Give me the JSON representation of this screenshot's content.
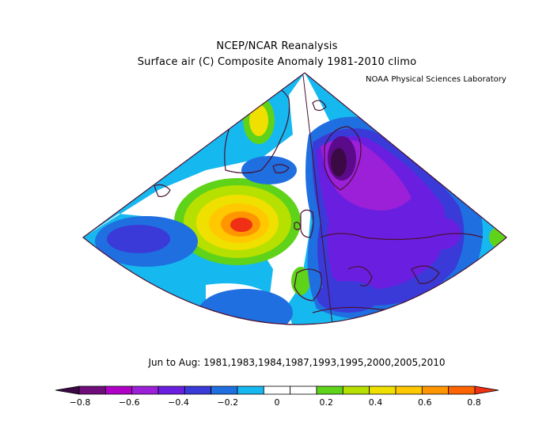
{
  "titles": {
    "line1": "NCEP/NCAR Reanalysis",
    "line2": "Surface air (C) Composite Anomaly 1981-2010 climo",
    "credit": "NOAA Physical Sciences Laboratory",
    "period": "Jun to Aug: 1981,1983,1984,1987,1993,1995,2000,2005,2010"
  },
  "colorbar": {
    "colors": [
      "#3b0a45",
      "#6f0d7a",
      "#b000c8",
      "#9b20d8",
      "#6a1fe0",
      "#3a3ad8",
      "#1f6fe0",
      "#16b8f0",
      "#ffffff",
      "#ffffff",
      "#5fd21a",
      "#b6e000",
      "#f0e000",
      "#ffc800",
      "#ff9600",
      "#ff6400",
      "#f03014"
    ],
    "ticks": [
      "-0.8",
      "-0.6",
      "-0.4",
      "-0.2",
      "0",
      "0.2",
      "0.4",
      "0.6",
      "0.8"
    ]
  },
  "map_colors": {
    "light_blue": "#16b8f0",
    "blue": "#1f6fe0",
    "dark_blue": "#3a3ad8",
    "purple": "#6a1fe0",
    "violet": "#9b20d8",
    "deep_purple": "#5b0a8a",
    "darkest": "#3b0a45",
    "green": "#5fd21a",
    "lime": "#b6e000",
    "yellow": "#f0e000",
    "gold": "#ffc800",
    "orange": "#ff9600",
    "red_orange": "#ff6400",
    "red": "#f03014",
    "coast": "#4a1030"
  }
}
